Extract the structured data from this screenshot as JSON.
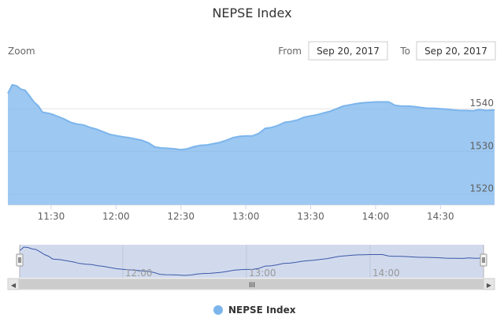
{
  "chart_data": {
    "type": "area",
    "title": "NEPSE Index",
    "x_ticks": [
      "11:30",
      "12:00",
      "12:30",
      "13:00",
      "13:30",
      "14:00",
      "14:30"
    ],
    "y_ticks": [
      1520,
      1530,
      1540
    ],
    "xlim": [
      "11:10",
      "14:55"
    ],
    "ylim": [
      1517.5,
      1546.5
    ],
    "grid": true,
    "legend_position": "bottom",
    "color": "#7cb5ec",
    "series": [
      {
        "name": "NEPSE Index",
        "points": [
          [
            "11:10",
            1543.6
          ],
          [
            "11:12",
            1545.6
          ],
          [
            "11:14",
            1545.4
          ],
          [
            "11:16",
            1544.6
          ],
          [
            "11:18",
            1544.3
          ],
          [
            "11:20",
            1543.0
          ],
          [
            "11:22",
            1541.6
          ],
          [
            "11:24",
            1540.7
          ],
          [
            "11:26",
            1539.2
          ],
          [
            "11:28",
            1539.0
          ],
          [
            "11:30",
            1538.8
          ],
          [
            "11:33",
            1538.2
          ],
          [
            "11:36",
            1537.6
          ],
          [
            "11:39",
            1536.8
          ],
          [
            "11:42",
            1536.4
          ],
          [
            "11:45",
            1536.2
          ],
          [
            "11:48",
            1535.6
          ],
          [
            "11:51",
            1535.2
          ],
          [
            "11:54",
            1534.6
          ],
          [
            "11:57",
            1534.0
          ],
          [
            "12:00",
            1533.7
          ],
          [
            "12:03",
            1533.4
          ],
          [
            "12:06",
            1533.2
          ],
          [
            "12:09",
            1532.9
          ],
          [
            "12:12",
            1532.6
          ],
          [
            "12:15",
            1532.0
          ],
          [
            "12:18",
            1531.0
          ],
          [
            "12:21",
            1530.8
          ],
          [
            "12:24",
            1530.7
          ],
          [
            "12:27",
            1530.6
          ],
          [
            "12:30",
            1530.4
          ],
          [
            "12:33",
            1530.6
          ],
          [
            "12:36",
            1531.1
          ],
          [
            "12:39",
            1531.4
          ],
          [
            "12:42",
            1531.5
          ],
          [
            "12:45",
            1531.8
          ],
          [
            "12:48",
            1532.1
          ],
          [
            "12:51",
            1532.6
          ],
          [
            "12:54",
            1533.2
          ],
          [
            "12:57",
            1533.5
          ],
          [
            "13:00",
            1533.6
          ],
          [
            "13:03",
            1533.6
          ],
          [
            "13:06",
            1534.2
          ],
          [
            "13:09",
            1535.4
          ],
          [
            "13:12",
            1535.6
          ],
          [
            "13:15",
            1536.1
          ],
          [
            "13:18",
            1536.8
          ],
          [
            "13:21",
            1537.0
          ],
          [
            "13:24",
            1537.4
          ],
          [
            "13:27",
            1538.0
          ],
          [
            "13:30",
            1538.3
          ],
          [
            "13:33",
            1538.6
          ],
          [
            "13:36",
            1539.0
          ],
          [
            "13:39",
            1539.4
          ],
          [
            "13:42",
            1540.0
          ],
          [
            "13:45",
            1540.6
          ],
          [
            "13:48",
            1540.9
          ],
          [
            "13:51",
            1541.2
          ],
          [
            "13:54",
            1541.4
          ],
          [
            "13:57",
            1541.5
          ],
          [
            "14:00",
            1541.6
          ],
          [
            "14:03",
            1541.6
          ],
          [
            "14:06",
            1541.6
          ],
          [
            "14:09",
            1540.8
          ],
          [
            "14:12",
            1540.6
          ],
          [
            "14:15",
            1540.6
          ],
          [
            "14:18",
            1540.5
          ],
          [
            "14:21",
            1540.3
          ],
          [
            "14:24",
            1540.1
          ],
          [
            "14:27",
            1540.1
          ],
          [
            "14:30",
            1540.0
          ],
          [
            "14:33",
            1539.9
          ],
          [
            "14:36",
            1539.7
          ],
          [
            "14:39",
            1539.6
          ],
          [
            "14:42",
            1539.6
          ],
          [
            "14:45",
            1539.5
          ],
          [
            "14:48",
            1539.8
          ],
          [
            "14:51",
            1539.6
          ],
          [
            "14:55",
            1539.7
          ]
        ]
      }
    ],
    "navigator": {
      "x_ticks": [
        "12:00",
        "13:00",
        "14:00"
      ]
    }
  },
  "ui": {
    "zoom_label": "Zoom",
    "from_label": "From",
    "from_value": "Sep 20, 2017",
    "to_label": "To",
    "to_value": "Sep 20, 2017",
    "scrollbar_grip": "III",
    "left_arrow": "◀",
    "right_arrow": "▶"
  },
  "colors": {
    "series": "#7cb5ec",
    "navigator_line": "#3a58a8",
    "navigator_mask": "rgba(102,133,194,0.3)",
    "grid": "#e6e6e6",
    "scrollbar": "#f0f0f0"
  }
}
